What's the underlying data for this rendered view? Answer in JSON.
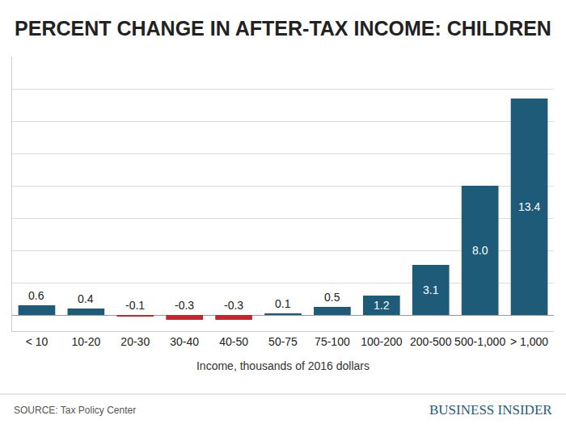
{
  "chart_data": {
    "type": "bar",
    "title": "PERCENT CHANGE IN AFTER-TAX INCOME: CHILDREN",
    "x_label": "Income, thousands of 2016 dollars",
    "categories": [
      "< 10",
      "10-20",
      "20-30",
      "30-40",
      "40-50",
      "50-75",
      "75-100",
      "100-200",
      "200-500",
      "500-1,000",
      "> 1,000"
    ],
    "values": [
      0.6,
      0.4,
      -0.1,
      -0.3,
      -0.3,
      0.1,
      0.5,
      1.2,
      3.1,
      8.0,
      13.4
    ],
    "value_labels": [
      "0.6",
      "0.4",
      "-0.1",
      "-0.3",
      "-0.3",
      "0.1",
      "0.5",
      "1.2",
      "3.1",
      "8.0",
      "13.4"
    ],
    "colors": [
      "#1d5b79",
      "#1d5b79",
      "#c1272d",
      "#c1272d",
      "#c1272d",
      "#1d5b79",
      "#1d5b79",
      "#1d5b79",
      "#1d5b79",
      "#1d5b79",
      "#1d5b79"
    ],
    "ylim": [
      -1,
      16
    ],
    "yticks": [
      0,
      2,
      4,
      6,
      8,
      10,
      12,
      14,
      16
    ],
    "grid": true,
    "tick_labels": "x",
    "data_labels": true,
    "annotations": [
      "SOURCE: Tax Policy Center",
      "BUSINESS INSIDER"
    ]
  }
}
